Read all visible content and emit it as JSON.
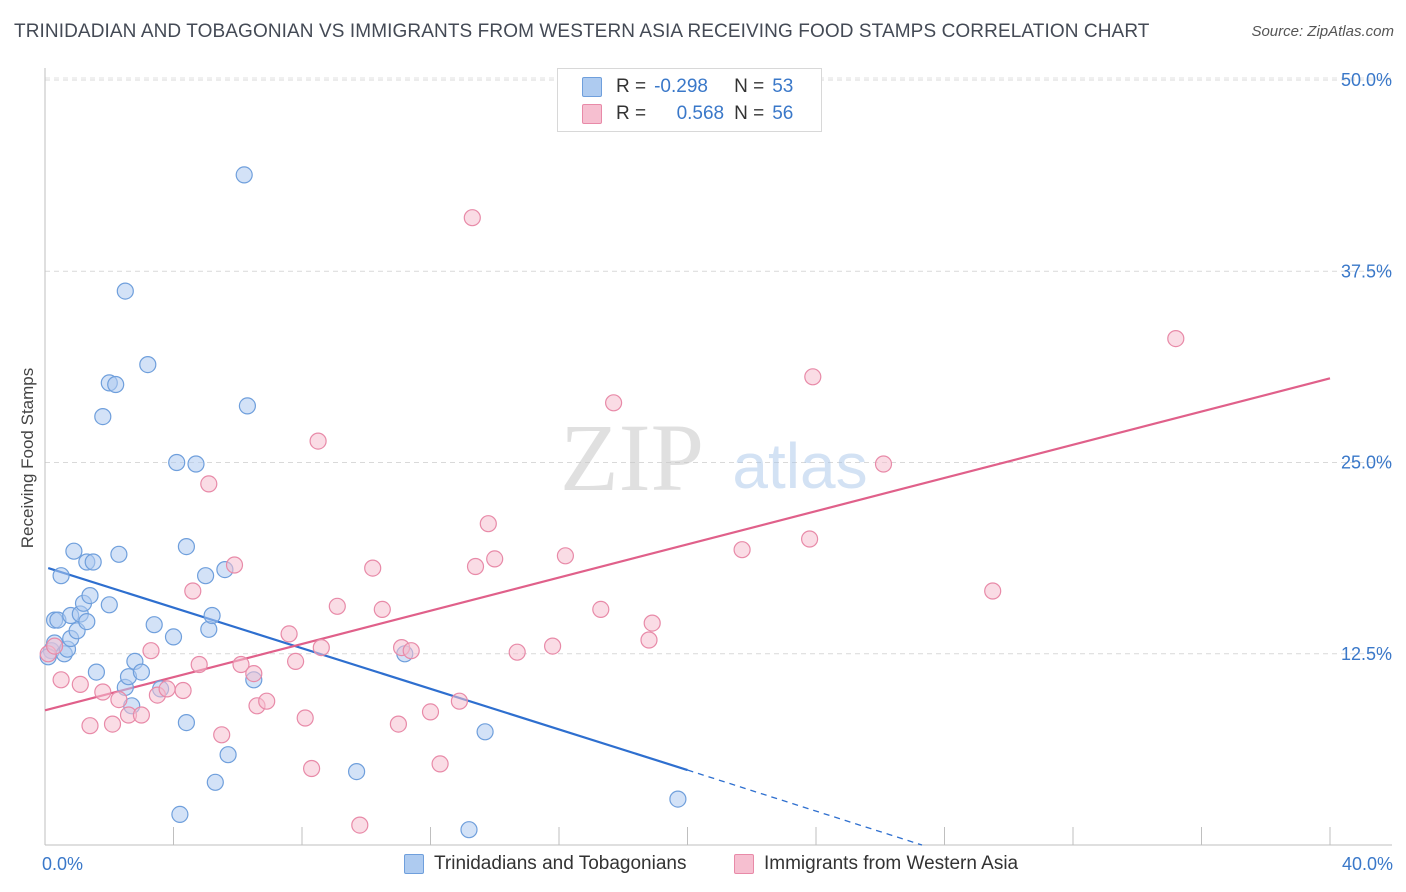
{
  "title": "TRINIDADIAN AND TOBAGONIAN VS IMMIGRANTS FROM WESTERN ASIA RECEIVING FOOD STAMPS CORRELATION CHART",
  "source": "Source: ZipAtlas.com",
  "watermark": {
    "zip": "ZIP",
    "atlas": "atlas"
  },
  "legend": {
    "rows": [
      {
        "r_label": "R =",
        "r_value": "-0.298",
        "n_label": "N =",
        "n_value": "53"
      },
      {
        "r_label": "R =",
        "r_value": "0.568",
        "n_label": "N =",
        "n_value": "56"
      }
    ]
  },
  "colors": {
    "blue_fill": "#aecbf0",
    "blue_stroke": "#6f9fdc",
    "blue_line": "#2e6fcf",
    "pink_fill": "#f6bfd0",
    "pink_stroke": "#e88aa8",
    "pink_line": "#e0608a",
    "tick_label": "#3a78c9",
    "grid": "#d9d9d9"
  },
  "chart_data": {
    "type": "scatter",
    "title": "TRINIDADIAN AND TOBAGONIAN VS IMMIGRANTS FROM WESTERN ASIA RECEIVING FOOD STAMPS CORRELATION CHART",
    "xlabel": "",
    "ylabel": "Receiving Food Stamps",
    "xlim": [
      0,
      40
    ],
    "ylim": [
      0,
      50
    ],
    "x_tick_labels": [
      "0.0%",
      "40.0%"
    ],
    "y_ticks": [
      12.5,
      25.0,
      37.5,
      50.0
    ],
    "y_tick_labels": [
      "12.5%",
      "25.0%",
      "37.5%",
      "50.0%"
    ],
    "grid": true,
    "series": [
      {
        "name": "Trinidadians and Tobagonians",
        "color": "#aecbf0",
        "r": -0.298,
        "n": 53,
        "trend": {
          "x1": 0.1,
          "y1": 18.1,
          "x2": 20.0,
          "y2": 4.9,
          "dash_to_x": 27.3,
          "dash_to_y": 0.0
        },
        "points": [
          [
            0.2,
            12.7
          ],
          [
            0.3,
            13.2
          ],
          [
            0.3,
            14.7
          ],
          [
            0.4,
            14.7
          ],
          [
            0.5,
            17.6
          ],
          [
            0.6,
            12.5
          ],
          [
            0.7,
            12.8
          ],
          [
            0.8,
            15.0
          ],
          [
            0.8,
            13.5
          ],
          [
            0.9,
            19.2
          ],
          [
            1.0,
            14.0
          ],
          [
            1.1,
            15.1
          ],
          [
            1.2,
            15.8
          ],
          [
            1.3,
            14.6
          ],
          [
            1.3,
            18.5
          ],
          [
            1.4,
            16.3
          ],
          [
            1.5,
            18.5
          ],
          [
            1.6,
            11.3
          ],
          [
            1.8,
            28.0
          ],
          [
            2.0,
            15.7
          ],
          [
            2.0,
            30.2
          ],
          [
            2.2,
            30.1
          ],
          [
            2.3,
            19.0
          ],
          [
            2.5,
            10.3
          ],
          [
            2.5,
            36.2
          ],
          [
            2.6,
            11.0
          ],
          [
            2.7,
            9.1
          ],
          [
            2.8,
            12.0
          ],
          [
            3.0,
            11.3
          ],
          [
            3.2,
            31.4
          ],
          [
            3.4,
            14.4
          ],
          [
            3.6,
            10.2
          ],
          [
            4.0,
            13.6
          ],
          [
            4.1,
            25.0
          ],
          [
            4.2,
            2.0
          ],
          [
            4.4,
            8.0
          ],
          [
            4.4,
            19.5
          ],
          [
            4.7,
            24.9
          ],
          [
            5.0,
            17.6
          ],
          [
            5.1,
            14.1
          ],
          [
            5.2,
            15.0
          ],
          [
            5.3,
            4.1
          ],
          [
            5.6,
            18.0
          ],
          [
            5.7,
            5.9
          ],
          [
            6.2,
            43.8
          ],
          [
            6.3,
            28.7
          ],
          [
            6.5,
            10.8
          ],
          [
            9.7,
            4.8
          ],
          [
            11.2,
            12.5
          ],
          [
            13.2,
            1.0
          ],
          [
            13.7,
            7.4
          ],
          [
            19.7,
            3.0
          ],
          [
            0.1,
            12.3
          ]
        ]
      },
      {
        "name": "Immigrants from Western Asia",
        "color": "#f6bfd0",
        "r": 0.568,
        "n": 56,
        "trend": {
          "x1": 0.0,
          "y1": 8.8,
          "x2": 40.0,
          "y2": 30.5
        },
        "points": [
          [
            0.1,
            12.5
          ],
          [
            0.3,
            13.0
          ],
          [
            0.5,
            10.8
          ],
          [
            1.1,
            10.5
          ],
          [
            1.4,
            7.8
          ],
          [
            1.8,
            10.0
          ],
          [
            2.1,
            7.9
          ],
          [
            2.3,
            9.5
          ],
          [
            2.6,
            8.5
          ],
          [
            3.0,
            8.5
          ],
          [
            3.3,
            12.7
          ],
          [
            3.5,
            9.8
          ],
          [
            3.8,
            10.2
          ],
          [
            4.3,
            10.1
          ],
          [
            4.6,
            16.6
          ],
          [
            4.8,
            11.8
          ],
          [
            5.1,
            23.6
          ],
          [
            5.5,
            7.2
          ],
          [
            5.9,
            18.3
          ],
          [
            6.1,
            11.8
          ],
          [
            6.5,
            11.2
          ],
          [
            6.6,
            9.1
          ],
          [
            6.9,
            9.4
          ],
          [
            7.6,
            13.8
          ],
          [
            7.8,
            12.0
          ],
          [
            8.1,
            8.3
          ],
          [
            8.3,
            5.0
          ],
          [
            8.5,
            26.4
          ],
          [
            8.6,
            12.9
          ],
          [
            9.1,
            15.6
          ],
          [
            10.2,
            18.1
          ],
          [
            9.8,
            1.3
          ],
          [
            10.5,
            15.4
          ],
          [
            11.0,
            7.9
          ],
          [
            11.1,
            12.9
          ],
          [
            11.4,
            12.7
          ],
          [
            12.0,
            8.7
          ],
          [
            12.3,
            5.3
          ],
          [
            12.9,
            9.4
          ],
          [
            13.3,
            41.0
          ],
          [
            13.4,
            18.2
          ],
          [
            13.8,
            21.0
          ],
          [
            14.0,
            18.7
          ],
          [
            14.7,
            12.6
          ],
          [
            15.8,
            13.0
          ],
          [
            16.2,
            18.9
          ],
          [
            17.3,
            15.4
          ],
          [
            17.7,
            28.9
          ],
          [
            18.8,
            13.4
          ],
          [
            18.9,
            14.5
          ],
          [
            21.7,
            19.3
          ],
          [
            23.8,
            20.0
          ],
          [
            23.9,
            30.6
          ],
          [
            26.1,
            24.9
          ],
          [
            29.5,
            16.6
          ],
          [
            35.2,
            33.1
          ]
        ]
      }
    ]
  },
  "bottom_legend": [
    {
      "label": "Trinidadians and Tobagonians"
    },
    {
      "label": "Immigrants from Western Asia"
    }
  ]
}
